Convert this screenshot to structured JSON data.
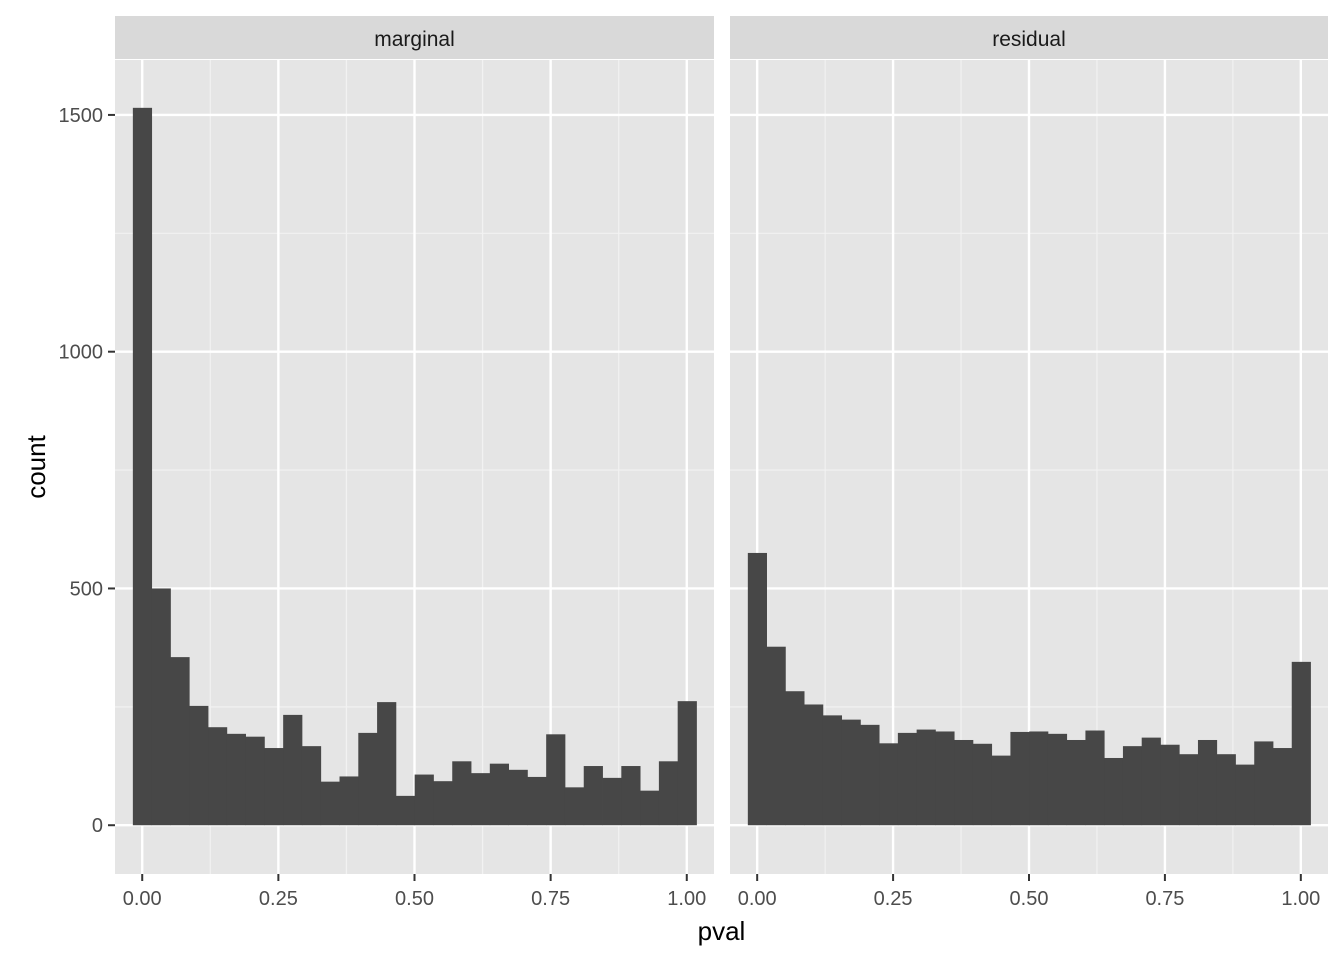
{
  "chart_data": {
    "type": "bar",
    "subtype": "histogram-facets",
    "xlabel": "pval",
    "ylabel": "count",
    "xlim": [
      -0.05,
      1.05
    ],
    "ylim": [
      -103,
      1616
    ],
    "x_ticks": [
      "0.00",
      "0.25",
      "0.50",
      "0.75",
      "1.00"
    ],
    "x_tick_values": [
      0,
      0.25,
      0.5,
      0.75,
      1.0
    ],
    "y_ticks": [
      "0",
      "500",
      "1000",
      "1500"
    ],
    "y_tick_values": [
      0,
      500,
      1000,
      1500
    ],
    "bin_width": 0.0345,
    "bin_start": -0.0172,
    "bar_color": "#474747",
    "panel_background": "#e5e5e5",
    "strip_background": "#d9d9d9",
    "grid": true,
    "facets": [
      {
        "label": "marginal",
        "values": [
          1515,
          500,
          355,
          252,
          207,
          193,
          187,
          163,
          233,
          167,
          92,
          103,
          195,
          260,
          62,
          107,
          93,
          135,
          110,
          130,
          117,
          102,
          192,
          80,
          125,
          100,
          125,
          73,
          135,
          262
        ]
      },
      {
        "label": "residual",
        "values": [
          575,
          377,
          283,
          255,
          232,
          223,
          212,
          173,
          195,
          202,
          198,
          180,
          172,
          147,
          197,
          198,
          193,
          180,
          200,
          142,
          167,
          185,
          170,
          150,
          180,
          150,
          128,
          177,
          163,
          345
        ]
      }
    ]
  }
}
